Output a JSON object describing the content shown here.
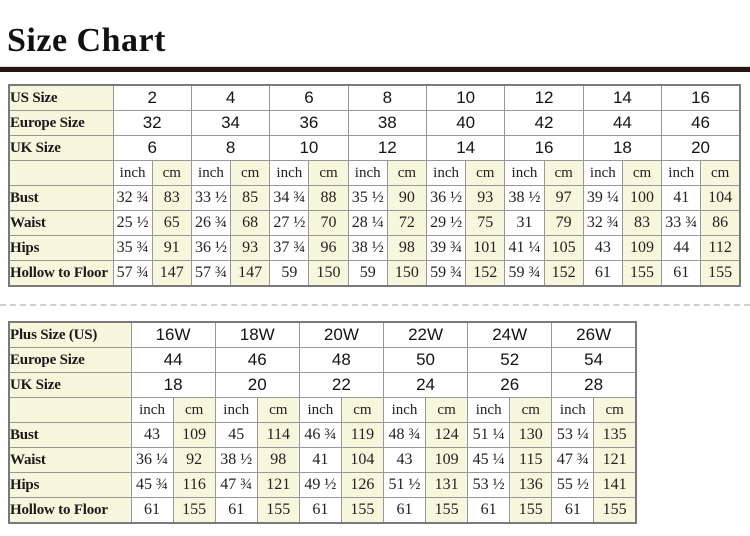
{
  "page": {
    "title": "Size Chart"
  },
  "colors": {
    "cream_cell": "#f7f7dd",
    "table_outer_border": "#7a7a7a",
    "grid_line": "#989898",
    "title_rule": "#26150f",
    "text": "#1f1f1f"
  },
  "chart_data": [
    {
      "type": "table",
      "size_rows": [
        {
          "label": "US Size",
          "values": [
            "2",
            "4",
            "6",
            "8",
            "10",
            "12",
            "14",
            "16"
          ]
        },
        {
          "label": "Europe Size",
          "values": [
            "32",
            "34",
            "36",
            "38",
            "40",
            "42",
            "44",
            "46"
          ]
        },
        {
          "label": "UK Size",
          "values": [
            "6",
            "8",
            "10",
            "12",
            "14",
            "16",
            "18",
            "20"
          ]
        }
      ],
      "unit_labels": [
        "inch",
        "cm"
      ],
      "measurement_rows": [
        {
          "label": "Bust",
          "inch": [
            "32 ¾",
            "33 ½",
            "34 ¾",
            "35 ½",
            "36 ½",
            "38 ½",
            "39 ¼",
            "41"
          ],
          "cm": [
            "83",
            "85",
            "88",
            "90",
            "93",
            "97",
            "100",
            "104"
          ]
        },
        {
          "label": "Waist",
          "inch": [
            "25 ½",
            "26 ¾",
            "27 ½",
            "28 ¼",
            "29 ½",
            "31",
            "32 ¾",
            "33 ¾"
          ],
          "cm": [
            "65",
            "68",
            "70",
            "72",
            "75",
            "79",
            "83",
            "86"
          ]
        },
        {
          "label": "Hips",
          "inch": [
            "35 ¾",
            "36 ½",
            "37 ¾",
            "38 ½",
            "39 ¾",
            "41 ¼",
            "43",
            "44"
          ],
          "cm": [
            "91",
            "93",
            "96",
            "98",
            "101",
            "105",
            "109",
            "112"
          ]
        },
        {
          "label": "Hollow to Floor",
          "inch": [
            "57 ¾",
            "57 ¾",
            "59",
            "59",
            "59 ¾",
            "59 ¾",
            "61",
            "61"
          ],
          "cm": [
            "147",
            "147",
            "150",
            "150",
            "152",
            "152",
            "155",
            "155"
          ]
        }
      ]
    },
    {
      "type": "table",
      "size_rows": [
        {
          "label": "Plus Size (US)",
          "values": [
            "16W",
            "18W",
            "20W",
            "22W",
            "24W",
            "26W"
          ]
        },
        {
          "label": "Europe Size",
          "values": [
            "44",
            "46",
            "48",
            "50",
            "52",
            "54"
          ]
        },
        {
          "label": "UK Size",
          "values": [
            "18",
            "20",
            "22",
            "24",
            "26",
            "28"
          ]
        }
      ],
      "unit_labels": [
        "inch",
        "cm"
      ],
      "measurement_rows": [
        {
          "label": "Bust",
          "inch": [
            "43",
            "45",
            "46 ¾",
            "48 ¾",
            "51 ¼",
            "53 ¼"
          ],
          "cm": [
            "109",
            "114",
            "119",
            "124",
            "130",
            "135"
          ]
        },
        {
          "label": "Waist",
          "inch": [
            "36 ¼",
            "38 ½",
            "41",
            "43",
            "45 ¼",
            "47 ¾"
          ],
          "cm": [
            "92",
            "98",
            "104",
            "109",
            "115",
            "121"
          ]
        },
        {
          "label": "Hips",
          "inch": [
            "45 ¾",
            "47 ¾",
            "49 ½",
            "51 ½",
            "53 ½",
            "55 ½"
          ],
          "cm": [
            "116",
            "121",
            "126",
            "131",
            "136",
            "141"
          ]
        },
        {
          "label": "Hollow to Floor",
          "inch": [
            "61",
            "61",
            "61",
            "61",
            "61",
            "61"
          ],
          "cm": [
            "155",
            "155",
            "155",
            "155",
            "155",
            "155"
          ]
        }
      ]
    }
  ]
}
